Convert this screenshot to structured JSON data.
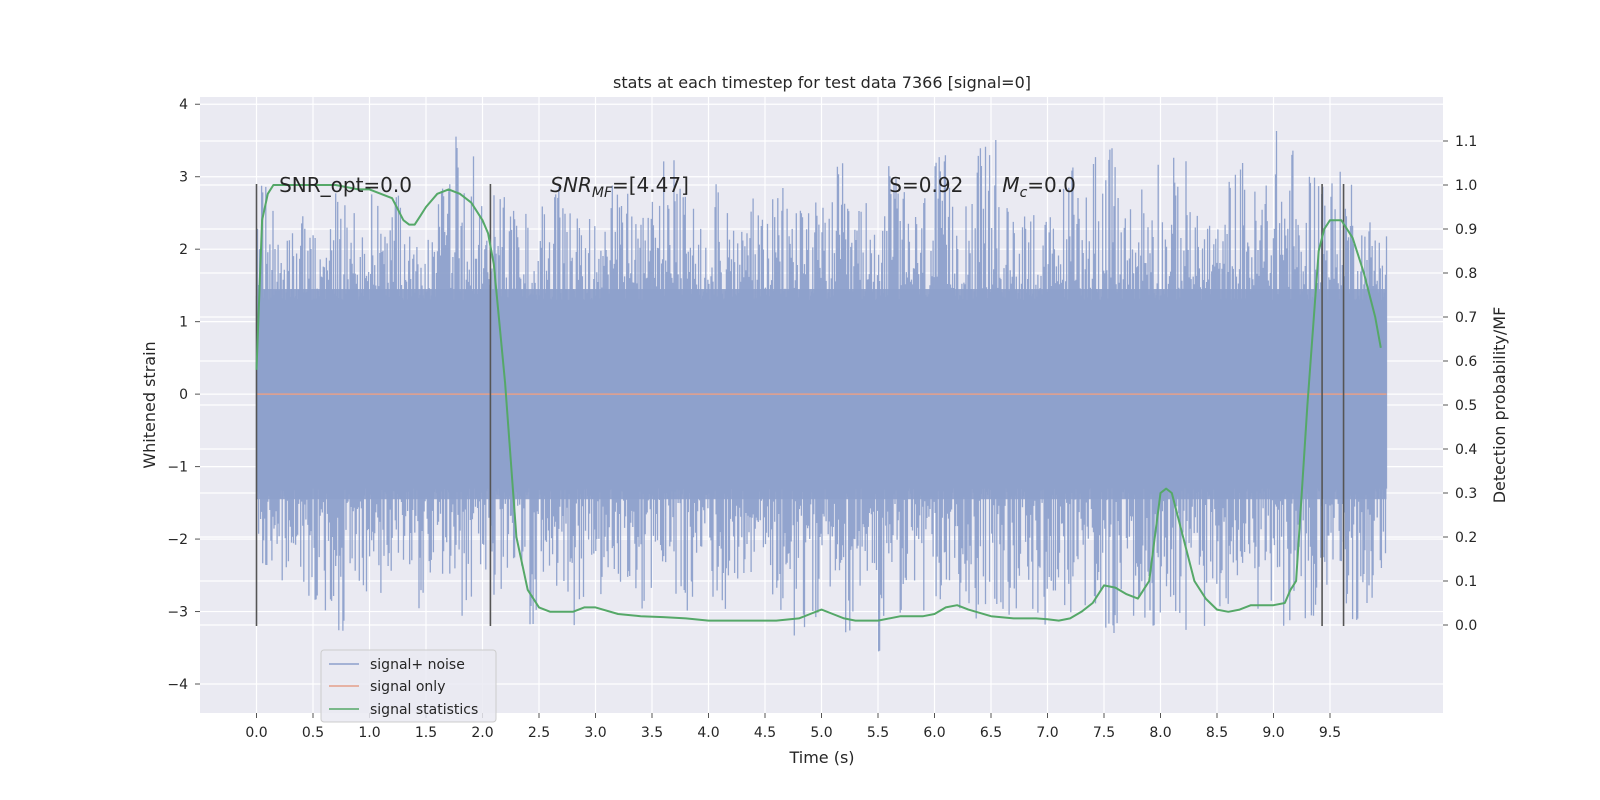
{
  "chart_data": {
    "type": "line",
    "title": "stats at each timestep for test data 7366 [signal=0]",
    "xlabel": "Time (s)",
    "ylabel": "Whitened strain",
    "y2label": "Detection probability/MF",
    "xlim": [
      -0.5,
      10.5
    ],
    "ylim": [
      -4.4,
      4.1
    ],
    "y2lim": [
      -0.2,
      1.2
    ],
    "x_ticks": [
      "0.0",
      "0.5",
      "1.0",
      "1.5",
      "2.0",
      "2.5",
      "3.0",
      "3.5",
      "4.0",
      "4.5",
      "5.0",
      "5.5",
      "6.0",
      "6.5",
      "7.0",
      "7.5",
      "8.0",
      "8.5",
      "9.0",
      "9.5"
    ],
    "y_ticks": [
      "4",
      "3",
      "2",
      "1",
      "0",
      "−1",
      "−2",
      "−3",
      "−4"
    ],
    "y2_ticks": [
      "1.1",
      "1.0",
      "0.9",
      "0.8",
      "0.7",
      "0.6",
      "0.5",
      "0.4",
      "0.3",
      "0.2",
      "0.1",
      "0.0"
    ],
    "grid": true,
    "legend_placement": "lower-left",
    "annotations": [
      {
        "text": "SNR_opt=0.0",
        "x": 0.2,
        "y": 2.9
      },
      {
        "text": "SNR",
        "sub": "MF",
        "suffix": "=[4.47]",
        "x": 2.6,
        "y": 2.9
      },
      {
        "text": "S",
        "suffix": "=0.92",
        "x": 5.6,
        "y": 2.9
      },
      {
        "text": "M",
        "sub": "c",
        "suffix": "=0.0",
        "x": 6.6,
        "y": 2.9
      }
    ],
    "vertical_lines": [
      {
        "x": 0.0,
        "y_top": 2.9,
        "y_bottom": -3.2
      },
      {
        "x": 2.07,
        "y_top": 2.9,
        "y_bottom": -3.2
      },
      {
        "x": 9.43,
        "y_top": 2.9,
        "y_bottom": -3.2
      },
      {
        "x": 9.62,
        "y_top": 2.9,
        "y_bottom": -3.2
      }
    ],
    "series": [
      {
        "name": "signal+ noise",
        "color": "#8da0cb",
        "x_range": [
          0.0,
          10.0
        ],
        "y_envelope_top": [
          2.9,
          3.2,
          2.2,
          2.3,
          2.5,
          2.2,
          2.4,
          3.0,
          2.5,
          2.3,
          2.8,
          2.4,
          3.0,
          2.5,
          2.4,
          2.3,
          2.9,
          3.7,
          2.8,
          3.6,
          2.5,
          2.9,
          2.7,
          2.5,
          2.4,
          2.9,
          3.1,
          2.7,
          2.5,
          2.6,
          2.4,
          3.1,
          2.8,
          2.6,
          2.5,
          3.0,
          3.4,
          2.9,
          2.7,
          2.8,
          3.5,
          2.5,
          2.4,
          3.0,
          2.6,
          2.7,
          2.9,
          2.8,
          3.1,
          2.7,
          2.7,
          3.2,
          2.7,
          2.7,
          2.5,
          3.2,
          3.3,
          2.8,
          2.6,
          2.9,
          3.3,
          2.9,
          3.2,
          3.3,
          3.7,
          3.6,
          2.6,
          2.7,
          2.8,
          2.5,
          2.5,
          3.0,
          3.4,
          3.0,
          3.6,
          3.4,
          2.9,
          2.7,
          3.1,
          3.6,
          2.7,
          3.3,
          3.3,
          2.5,
          2.6,
          2.4,
          3.2,
          3.3,
          2.9,
          3.4,
          3.7,
          3.5,
          2.6,
          3.3,
          3.6,
          3.1,
          3.2,
          2.5,
          2.5,
          2.5
        ],
        "y_envelope_bottom": [
          -2.4,
          -2.3,
          -2.6,
          -2.5,
          -2.8,
          -3.0,
          -3.4,
          -3.3,
          -2.9,
          -2.9,
          -2.4,
          -2.8,
          -2.8,
          -2.5,
          -3.1,
          -2.8,
          -2.5,
          -3.0,
          -3.3,
          -3.5,
          -2.9,
          -2.8,
          -2.4,
          -2.8,
          -3.2,
          -2.5,
          -3.1,
          -2.8,
          -3.2,
          -2.6,
          -2.8,
          -2.8,
          -3.0,
          -2.7,
          -3.0,
          -2.8,
          -2.6,
          -2.8,
          -3.0,
          -3.3,
          -2.9,
          -3.3,
          -2.8,
          -2.6,
          -2.6,
          -3.0,
          -3.1,
          -3.5,
          -3.4,
          -3.2,
          -3.0,
          -2.9,
          -3.3,
          -2.8,
          -2.6,
          -3.6,
          -3.1,
          -3.4,
          -2.8,
          -3.2,
          -3.2,
          -3.0,
          -3.0,
          -3.3,
          -2.9,
          -3.0,
          -3.1,
          -3.2,
          -3.3,
          -3.2,
          -2.8,
          -3.1,
          -3.3,
          -3.3,
          -3.1,
          -3.4,
          -3.2,
          -3.3,
          -3.3,
          -3.2,
          -2.9,
          -3.1,
          -3.4,
          -3.4,
          -2.7,
          -3.1,
          -2.5,
          -2.7,
          -3.1,
          -3.0,
          -3.2,
          -3.7,
          -3.1,
          -3.1,
          -2.8,
          -3.2,
          -3.4,
          -3.2,
          -2.9,
          -2.5
        ]
      },
      {
        "name": "signal only",
        "color": "#e5a08a",
        "x": [
          0.0,
          10.0
        ],
        "y": [
          0.0,
          0.0
        ]
      },
      {
        "name": "signal statistics",
        "color": "#55a868",
        "axis": "right",
        "x": [
          0.0,
          0.05,
          0.1,
          0.15,
          0.2,
          0.3,
          0.5,
          0.7,
          0.9,
          1.0,
          1.1,
          1.2,
          1.3,
          1.35,
          1.4,
          1.45,
          1.5,
          1.6,
          1.7,
          1.8,
          1.9,
          2.0,
          2.05,
          2.1,
          2.2,
          2.3,
          2.4,
          2.5,
          2.6,
          2.7,
          2.8,
          2.9,
          3.0,
          3.2,
          3.4,
          3.6,
          3.8,
          4.0,
          4.2,
          4.4,
          4.6,
          4.8,
          4.9,
          5.0,
          5.1,
          5.2,
          5.3,
          5.5,
          5.7,
          5.8,
          5.9,
          6.0,
          6.1,
          6.2,
          6.3,
          6.5,
          6.7,
          6.8,
          6.9,
          7.0,
          7.1,
          7.2,
          7.3,
          7.4,
          7.5,
          7.6,
          7.7,
          7.8,
          7.9,
          7.95,
          8.0,
          8.05,
          8.1,
          8.2,
          8.3,
          8.4,
          8.5,
          8.6,
          8.7,
          8.8,
          8.9,
          9.0,
          9.1,
          9.15,
          9.2,
          9.3,
          9.4,
          9.45,
          9.5,
          9.6,
          9.7,
          9.8,
          9.9,
          9.95
        ],
        "y": [
          0.58,
          0.92,
          0.98,
          1.0,
          1.0,
          1.0,
          1.0,
          1.0,
          0.99,
          0.99,
          0.98,
          0.97,
          0.92,
          0.91,
          0.91,
          0.93,
          0.95,
          0.98,
          0.99,
          0.98,
          0.96,
          0.92,
          0.89,
          0.82,
          0.55,
          0.2,
          0.08,
          0.04,
          0.03,
          0.03,
          0.03,
          0.04,
          0.04,
          0.025,
          0.02,
          0.018,
          0.015,
          0.01,
          0.01,
          0.01,
          0.01,
          0.015,
          0.025,
          0.035,
          0.025,
          0.015,
          0.01,
          0.01,
          0.02,
          0.02,
          0.02,
          0.025,
          0.04,
          0.045,
          0.035,
          0.02,
          0.015,
          0.015,
          0.015,
          0.013,
          0.01,
          0.015,
          0.03,
          0.05,
          0.09,
          0.085,
          0.07,
          0.06,
          0.1,
          0.2,
          0.3,
          0.31,
          0.3,
          0.2,
          0.1,
          0.06,
          0.035,
          0.03,
          0.035,
          0.045,
          0.045,
          0.045,
          0.05,
          0.08,
          0.1,
          0.5,
          0.85,
          0.9,
          0.92,
          0.92,
          0.88,
          0.8,
          0.7,
          0.63
        ]
      }
    ]
  }
}
